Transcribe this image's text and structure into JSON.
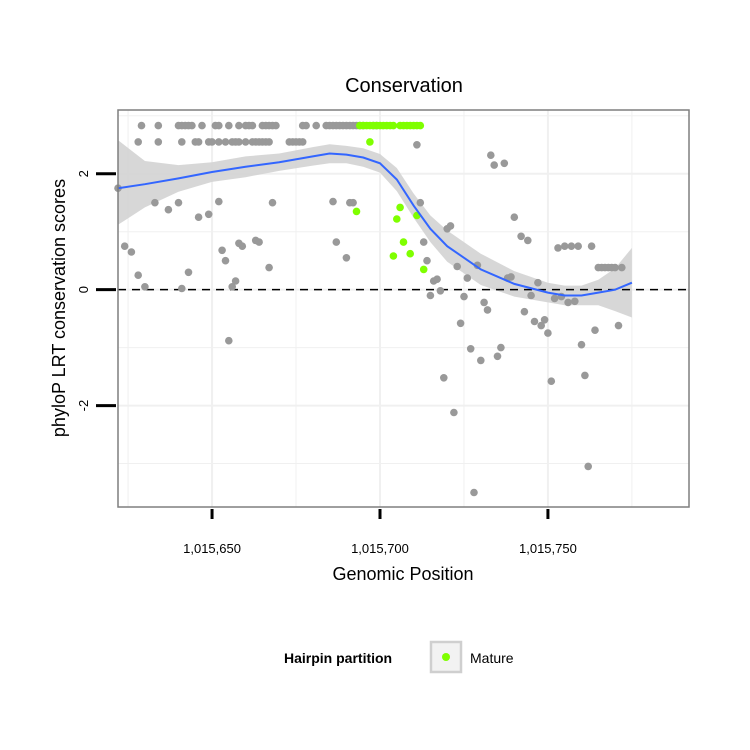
{
  "chart_data": {
    "type": "scatter",
    "title": "Conservation",
    "xlabel": "Genomic Position",
    "ylabel": "phyloP LRT conservation scores",
    "xlim": [
      1015622,
      1015792
    ],
    "ylim": [
      -3.75,
      3.1
    ],
    "x_ticks": [
      1015650,
      1015700,
      1015750
    ],
    "x_tick_labels": [
      "1,015,650",
      "1,015,700",
      "1,015,750"
    ],
    "y_ticks": [
      -2,
      0,
      2
    ],
    "y_tick_labels": [
      "-2",
      "0",
      "2"
    ],
    "reference_line": {
      "y": 0,
      "style": "dashed"
    },
    "grid": true,
    "legend": {
      "title": "Hairpin partition",
      "position": "bottom",
      "entries": [
        {
          "label": "Mature",
          "color": "#7fff00"
        }
      ]
    },
    "colors": {
      "other": "#999999",
      "mature": "#7fff00",
      "smooth": "#3366ff",
      "band": "#d3d3d3",
      "panel_border": "#7f7f7f",
      "grid": "#f0f0f0"
    },
    "series": [
      {
        "name": "Other",
        "points": [
          [
            1015629,
            2.83
          ],
          [
            1015634,
            2.83
          ],
          [
            1015640,
            2.83
          ],
          [
            1015641,
            2.83
          ],
          [
            1015642,
            2.83
          ],
          [
            1015643,
            2.83
          ],
          [
            1015644,
            2.83
          ],
          [
            1015647,
            2.83
          ],
          [
            1015651,
            2.83
          ],
          [
            1015652,
            2.83
          ],
          [
            1015655,
            2.83
          ],
          [
            1015658,
            2.83
          ],
          [
            1015660,
            2.83
          ],
          [
            1015661,
            2.83
          ],
          [
            1015662,
            2.83
          ],
          [
            1015665,
            2.83
          ],
          [
            1015666,
            2.83
          ],
          [
            1015667,
            2.83
          ],
          [
            1015668,
            2.83
          ],
          [
            1015669,
            2.83
          ],
          [
            1015677,
            2.83
          ],
          [
            1015678,
            2.83
          ],
          [
            1015681,
            2.83
          ],
          [
            1015684,
            2.83
          ],
          [
            1015685,
            2.83
          ],
          [
            1015686,
            2.83
          ],
          [
            1015687,
            2.83
          ],
          [
            1015688,
            2.83
          ],
          [
            1015689,
            2.83
          ],
          [
            1015690,
            2.83
          ],
          [
            1015691,
            2.83
          ],
          [
            1015692,
            2.83
          ],
          [
            1015693,
            2.83
          ],
          [
            1015694,
            2.83
          ],
          [
            1015695,
            2.83
          ],
          [
            1015698,
            2.83
          ],
          [
            1015699,
            2.83
          ],
          [
            1015628,
            2.55
          ],
          [
            1015634,
            2.55
          ],
          [
            1015641,
            2.55
          ],
          [
            1015645,
            2.55
          ],
          [
            1015646,
            2.55
          ],
          [
            1015649,
            2.55
          ],
          [
            1015650,
            2.55
          ],
          [
            1015652,
            2.55
          ],
          [
            1015654,
            2.55
          ],
          [
            1015656,
            2.55
          ],
          [
            1015657,
            2.55
          ],
          [
            1015658,
            2.55
          ],
          [
            1015660,
            2.55
          ],
          [
            1015662,
            2.55
          ],
          [
            1015663,
            2.55
          ],
          [
            1015664,
            2.55
          ],
          [
            1015665,
            2.55
          ],
          [
            1015666,
            2.55
          ],
          [
            1015667,
            2.55
          ],
          [
            1015673,
            2.55
          ],
          [
            1015674,
            2.55
          ],
          [
            1015675,
            2.55
          ],
          [
            1015676,
            2.55
          ],
          [
            1015677,
            2.55
          ],
          [
            1015622,
            1.75
          ],
          [
            1015624,
            0.75
          ],
          [
            1015626,
            0.65
          ],
          [
            1015628,
            0.25
          ],
          [
            1015630,
            0.05
          ],
          [
            1015633,
            1.5
          ],
          [
            1015637,
            1.38
          ],
          [
            1015640,
            1.5
          ],
          [
            1015641,
            0.02
          ],
          [
            1015643,
            0.3
          ],
          [
            1015646,
            1.25
          ],
          [
            1015649,
            1.3
          ],
          [
            1015652,
            1.52
          ],
          [
            1015653,
            0.68
          ],
          [
            1015654,
            0.5
          ],
          [
            1015655,
            -0.88
          ],
          [
            1015656,
            0.05
          ],
          [
            1015657,
            0.15
          ],
          [
            1015658,
            0.8
          ],
          [
            1015659,
            0.75
          ],
          [
            1015663,
            0.85
          ],
          [
            1015664,
            0.82
          ],
          [
            1015667,
            0.38
          ],
          [
            1015668,
            1.5
          ],
          [
            1015686,
            1.52
          ],
          [
            1015687,
            0.82
          ],
          [
            1015690,
            0.55
          ],
          [
            1015691,
            1.5
          ],
          [
            1015692,
            1.5
          ],
          [
            1015711,
            2.5
          ],
          [
            1015712,
            1.5
          ],
          [
            1015713,
            0.82
          ],
          [
            1015714,
            0.5
          ],
          [
            1015715,
            -0.1
          ],
          [
            1015716,
            0.15
          ],
          [
            1015717,
            0.18
          ],
          [
            1015718,
            -0.02
          ],
          [
            1015719,
            -1.52
          ],
          [
            1015720,
            1.05
          ],
          [
            1015721,
            1.1
          ],
          [
            1015722,
            -2.12
          ],
          [
            1015723,
            0.4
          ],
          [
            1015724,
            -0.58
          ],
          [
            1015725,
            -0.12
          ],
          [
            1015726,
            0.2
          ],
          [
            1015727,
            -1.02
          ],
          [
            1015728,
            -3.5
          ],
          [
            1015729,
            0.42
          ],
          [
            1015730,
            -1.22
          ],
          [
            1015731,
            -0.22
          ],
          [
            1015732,
            -0.35
          ],
          [
            1015733,
            2.32
          ],
          [
            1015734,
            2.15
          ],
          [
            1015735,
            -1.15
          ],
          [
            1015736,
            -1.0
          ],
          [
            1015737,
            2.18
          ],
          [
            1015738,
            0.2
          ],
          [
            1015739,
            0.22
          ],
          [
            1015740,
            1.25
          ],
          [
            1015742,
            0.92
          ],
          [
            1015743,
            -0.38
          ],
          [
            1015744,
            0.85
          ],
          [
            1015745,
            -0.1
          ],
          [
            1015746,
            -0.55
          ],
          [
            1015747,
            0.12
          ],
          [
            1015748,
            -0.62
          ],
          [
            1015749,
            -0.52
          ],
          [
            1015750,
            -0.75
          ],
          [
            1015751,
            -1.58
          ],
          [
            1015752,
            -0.15
          ],
          [
            1015753,
            0.72
          ],
          [
            1015754,
            -0.12
          ],
          [
            1015755,
            0.75
          ],
          [
            1015756,
            -0.22
          ],
          [
            1015757,
            0.75
          ],
          [
            1015758,
            -0.2
          ],
          [
            1015759,
            0.75
          ],
          [
            1015760,
            -0.95
          ],
          [
            1015761,
            -1.48
          ],
          [
            1015762,
            -3.05
          ],
          [
            1015763,
            0.75
          ],
          [
            1015764,
            -0.7
          ],
          [
            1015765,
            0.38
          ],
          [
            1015766,
            0.38
          ],
          [
            1015767,
            0.38
          ],
          [
            1015768,
            0.38
          ],
          [
            1015769,
            0.38
          ],
          [
            1015770,
            0.38
          ],
          [
            1015771,
            -0.62
          ],
          [
            1015772,
            0.38
          ]
        ]
      },
      {
        "name": "Mature",
        "points": [
          [
            1015694,
            2.83
          ],
          [
            1015695,
            2.83
          ],
          [
            1015696,
            2.83
          ],
          [
            1015697,
            2.83
          ],
          [
            1015698,
            2.83
          ],
          [
            1015699,
            2.83
          ],
          [
            1015700,
            2.83
          ],
          [
            1015701,
            2.83
          ],
          [
            1015702,
            2.83
          ],
          [
            1015703,
            2.83
          ],
          [
            1015704,
            2.83
          ],
          [
            1015706,
            2.83
          ],
          [
            1015707,
            2.83
          ],
          [
            1015708,
            2.83
          ],
          [
            1015709,
            2.83
          ],
          [
            1015710,
            2.83
          ],
          [
            1015711,
            2.83
          ],
          [
            1015712,
            2.83
          ],
          [
            1015697,
            2.55
          ],
          [
            1015693,
            1.35
          ],
          [
            1015704,
            0.58
          ],
          [
            1015705,
            1.22
          ],
          [
            1015706,
            1.42
          ],
          [
            1015707,
            0.82
          ],
          [
            1015709,
            0.62
          ],
          [
            1015711,
            1.28
          ],
          [
            1015713,
            0.35
          ]
        ]
      }
    ],
    "smooth": {
      "x": [
        1015622,
        1015630,
        1015640,
        1015650,
        1015660,
        1015670,
        1015680,
        1015685,
        1015690,
        1015695,
        1015700,
        1015705,
        1015710,
        1015715,
        1015720,
        1015730,
        1015740,
        1015750,
        1015755,
        1015760,
        1015765,
        1015770,
        1015775
      ],
      "y": [
        1.75,
        1.82,
        1.92,
        2.03,
        2.12,
        2.2,
        2.3,
        2.35,
        2.33,
        2.28,
        2.18,
        1.9,
        1.45,
        1.05,
        0.75,
        0.35,
        0.1,
        -0.05,
        -0.1,
        -0.1,
        -0.05,
        0.0,
        0.12
      ],
      "upper": [
        2.58,
        2.22,
        2.15,
        2.2,
        2.3,
        2.35,
        2.46,
        2.51,
        2.48,
        2.44,
        2.34,
        2.1,
        1.66,
        1.28,
        1.02,
        0.62,
        0.32,
        0.12,
        0.07,
        0.07,
        0.17,
        0.37,
        0.72
      ],
      "lower": [
        1.12,
        1.42,
        1.69,
        1.86,
        1.94,
        2.05,
        2.14,
        2.18,
        2.18,
        2.12,
        2.02,
        1.7,
        1.24,
        0.82,
        0.48,
        0.08,
        -0.12,
        -0.22,
        -0.27,
        -0.27,
        -0.27,
        -0.37,
        -0.48
      ]
    }
  }
}
